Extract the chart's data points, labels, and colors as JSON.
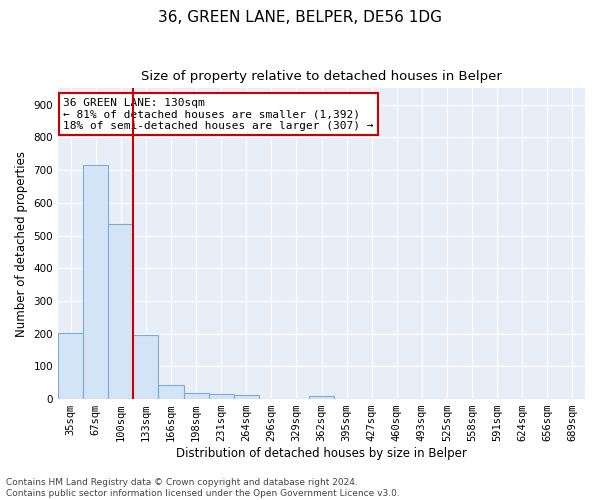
{
  "title": "36, GREEN LANE, BELPER, DE56 1DG",
  "subtitle": "Size of property relative to detached houses in Belper",
  "xlabel": "Distribution of detached houses by size in Belper",
  "ylabel": "Number of detached properties",
  "categories": [
    "35sqm",
    "67sqm",
    "100sqm",
    "133sqm",
    "166sqm",
    "198sqm",
    "231sqm",
    "264sqm",
    "296sqm",
    "329sqm",
    "362sqm",
    "395sqm",
    "427sqm",
    "460sqm",
    "493sqm",
    "525sqm",
    "558sqm",
    "591sqm",
    "624sqm",
    "656sqm",
    "689sqm"
  ],
  "values": [
    203,
    715,
    535,
    197,
    43,
    20,
    15,
    13,
    0,
    0,
    8,
    0,
    0,
    0,
    0,
    0,
    0,
    0,
    0,
    0,
    0
  ],
  "bar_color": "#d4e4f7",
  "bar_edge_color": "#7aadd4",
  "vline_x": 2.5,
  "vline_color": "#cc0000",
  "annotation_text": "36 GREEN LANE: 130sqm\n← 81% of detached houses are smaller (1,392)\n18% of semi-detached houses are larger (307) →",
  "annotation_box_color": "#ffffff",
  "annotation_box_edge": "#cc0000",
  "ylim": [
    0,
    950
  ],
  "yticks": [
    0,
    100,
    200,
    300,
    400,
    500,
    600,
    700,
    800,
    900
  ],
  "footer_text": "Contains HM Land Registry data © Crown copyright and database right 2024.\nContains public sector information licensed under the Open Government Licence v3.0.",
  "plot_bg_color": "#e8eef8",
  "fig_bg_color": "#ffffff",
  "grid_color": "#ffffff",
  "title_fontsize": 11,
  "subtitle_fontsize": 9.5,
  "tick_fontsize": 7.5,
  "label_fontsize": 8.5,
  "footer_fontsize": 6.5,
  "annotation_fontsize": 8
}
